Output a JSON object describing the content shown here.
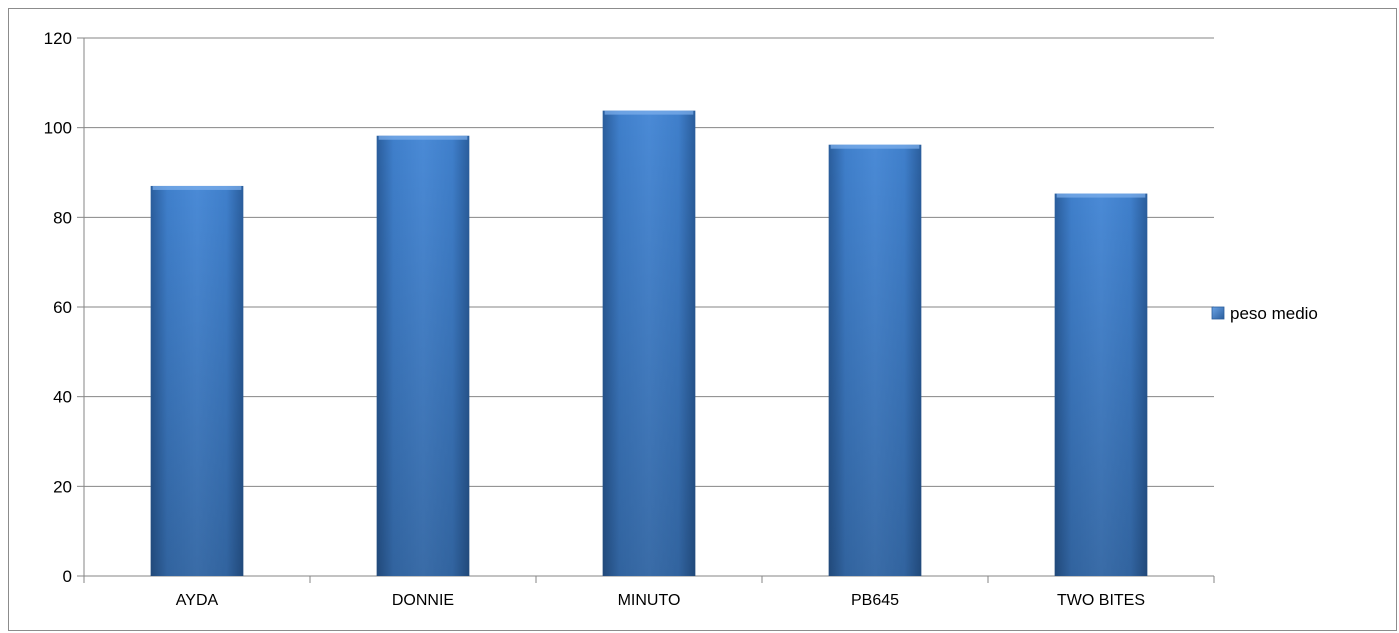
{
  "chart_data": {
    "type": "bar",
    "title": "",
    "xlabel": "",
    "ylabel": "",
    "categories": [
      "AYDA",
      "DONNIE",
      "MINUTO",
      "PB645",
      "TWO BITES"
    ],
    "series": [
      {
        "name": "peso medio",
        "values": [
          87,
          98.2,
          103.8,
          96.2,
          85.3
        ],
        "color": "#3f7ec8"
      }
    ],
    "ylim": [
      0,
      120
    ],
    "yticks": [
      0,
      20,
      40,
      60,
      80,
      100,
      120
    ],
    "grid": true,
    "legend_position": "right"
  }
}
